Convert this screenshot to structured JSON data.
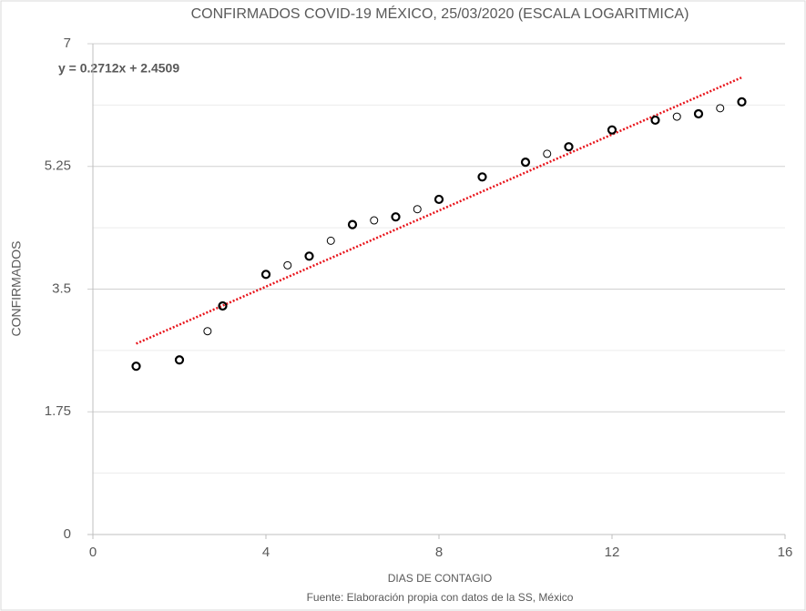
{
  "chart_data": {
    "type": "scatter",
    "title": "CONFIRMADOS COVID-19 MÉXICO, 25/03/2020 (ESCALA LOGARITMICA)",
    "x_label": "DIAS DE CONTAGIO",
    "y_label": "CONFIRMADOS",
    "source": "Fuente: Elaboración propia con datos de la SS, México",
    "series": [
      {
        "color": "#000000",
        "marker_weight": 2.2,
        "x": [
          1,
          2,
          3,
          4,
          5,
          6,
          7,
          8,
          9,
          10,
          11,
          12,
          13,
          14,
          15
        ],
        "values": [
          2.4,
          2.49,
          3.26,
          3.71,
          3.97,
          4.42,
          4.53,
          4.78,
          5.1,
          5.31,
          5.53,
          5.77,
          5.91,
          6.0,
          6.17
        ]
      },
      {
        "color": "#000000",
        "marker_weight": 1,
        "x": [
          2.65,
          4.5,
          5.5,
          6.5,
          7.5,
          10.5,
          13.5,
          14.5
        ],
        "values": [
          2.9,
          3.84,
          4.19,
          4.48,
          4.64,
          5.43,
          5.96,
          6.08
        ]
      }
    ],
    "trendline": {
      "label": "y = 0.2712x + 2.4509",
      "slope": 0.2712,
      "intercept": 2.4509,
      "x": [
        1,
        15
      ],
      "color": "#e8141b"
    },
    "xlim": [
      0,
      16
    ],
    "xticks": [
      0,
      4,
      8,
      12,
      16
    ],
    "ylim": [
      0,
      7
    ],
    "yticks": [
      0,
      1.75,
      3.5,
      5.25,
      7
    ],
    "yminor": [
      0.875,
      2.625,
      4.375,
      6.125
    ],
    "grid": true
  }
}
